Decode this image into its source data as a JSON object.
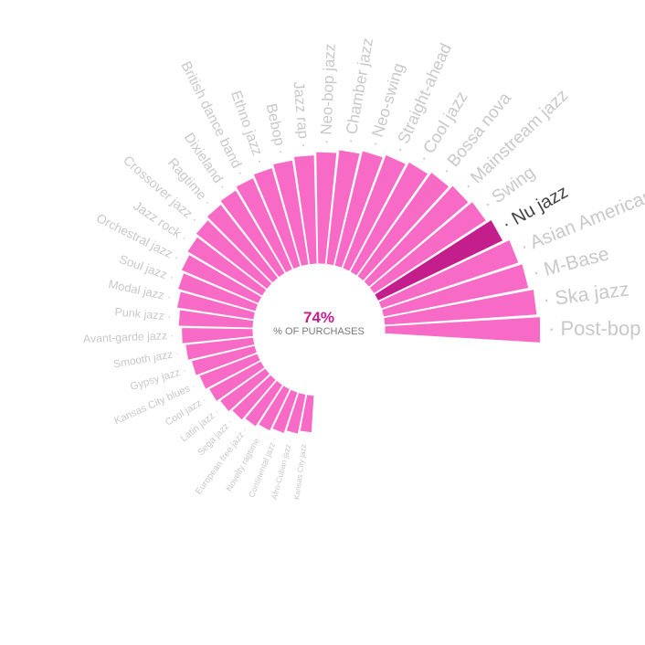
{
  "colors": {
    "bar": "#f76ac6",
    "highlight": "#c41e8c",
    "label": "#c9c9c9",
    "highlight_label": "#444444",
    "center_value": "#c41e8c",
    "center_label": "#7a7a7a"
  },
  "center": {
    "value": "74%",
    "label": "% OF PURCHASES"
  },
  "chart_data": {
    "type": "bar",
    "layout": "radial",
    "highlighted": "Nu jazz",
    "categories": [
      "Post-bop",
      "Ska jazz",
      "M-Base",
      "Asian American",
      "Nu jazz",
      "Swing",
      "Mainstream jazz",
      "Bossa nova",
      "Cool jazz",
      "Straight-ahead",
      "Neo-swing",
      "Chamber jazz",
      "Neo-bop jazz",
      "Jazz rap",
      "Bebop",
      "Ethno jazz",
      "British dance band",
      "Dixieland",
      "Ragtime",
      "Crossover jazz",
      "Jazz rock",
      "Orchestral jazz",
      "Soul jazz",
      "Modal jazz",
      "Punk jazz",
      "Avant-garde jazz",
      "Smooth jazz",
      "Gypsy jazz",
      "Kansas City blues",
      "Cool jazz",
      "Latin jazz",
      "Sega jazz",
      "European free jazz",
      "Novelty ragtime",
      "Continental jazz",
      "Afro-Cuban jazz",
      "Kansas City jazz"
    ],
    "values": [
      100,
      98,
      95,
      93,
      89,
      86,
      84,
      82,
      80,
      78,
      76,
      74,
      72,
      70,
      68,
      66,
      64,
      62,
      60,
      58,
      56,
      54,
      52,
      50,
      48,
      46,
      44,
      42,
      40,
      38,
      36,
      34,
      32,
      30,
      28,
      26,
      24
    ]
  }
}
